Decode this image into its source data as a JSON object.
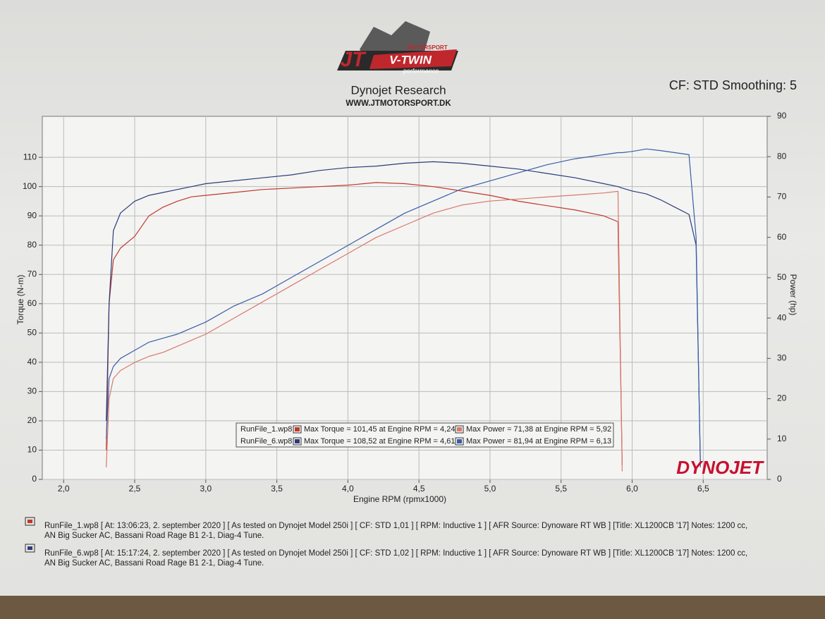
{
  "chart_data": {
    "type": "line",
    "title": "Dynojet Research",
    "subtitle": "WWW.JTMOTORSPORT.DK",
    "annotation": "CF: STD Smoothing: 5",
    "logo_texts": [
      "MOTORSPORT",
      "JT",
      "V-TWIN",
      "performance"
    ],
    "brand": "DYNOJET",
    "x_label": "Engine RPM (rpmx1000)",
    "y_label": "Torque (N-m)",
    "y2_label": "Power (hp)",
    "x": [
      2.3,
      2.32,
      2.35,
      2.4,
      2.5,
      2.6,
      2.7,
      2.8,
      2.9,
      3.0,
      3.2,
      3.4,
      3.6,
      3.8,
      4.0,
      4.2,
      4.4,
      4.6,
      4.8,
      5.0,
      5.2,
      5.4,
      5.6,
      5.8,
      5.9,
      5.93,
      6.0,
      6.1,
      6.2,
      6.3,
      6.4,
      6.45,
      6.48
    ],
    "series": [
      {
        "name": "Max Torque = 101,45 at Engine RPM = 4,24",
        "color": "#c0392b",
        "values": [
          10,
          60,
          75,
          79,
          83,
          90,
          93,
          95,
          96.5,
          97,
          98,
          99,
          99.5,
          100,
          100.5,
          101.4,
          101,
          100,
          98.5,
          97,
          95,
          93.5,
          92,
          90,
          88,
          5,
          null,
          null,
          null,
          null,
          null,
          null,
          null
        ]
      },
      {
        "name": "Max Power = 71,38 at Engine RPM = 5,92",
        "color": "#d9786c",
        "axis": "y2",
        "values": [
          3,
          20,
          25,
          27,
          29,
          30.5,
          31.5,
          33,
          34.5,
          36,
          40,
          44,
          48,
          52,
          56,
          60,
          63,
          66,
          68,
          69,
          69.5,
          70,
          70.5,
          71,
          71.4,
          2,
          null,
          null,
          null,
          null,
          null,
          null,
          null
        ]
      },
      {
        "name": "Max Torque = 108,52 at Engine RPM = 4,61",
        "color": "#2b3c78",
        "values": [
          20,
          60,
          85,
          91,
          95,
          97,
          98,
          99,
          100,
          101,
          102,
          103,
          104,
          105.5,
          106.5,
          107,
          108,
          108.5,
          108,
          107,
          106,
          104.5,
          103,
          101,
          100,
          99.5,
          98.5,
          97.5,
          95.5,
          93,
          90.5,
          80,
          5
        ]
      },
      {
        "name": "Max Power = 81,94 at Engine RPM = 6,13",
        "color": "#3a5da6",
        "axis": "y2",
        "values": [
          10,
          25,
          28,
          30,
          32,
          34,
          35,
          36,
          37.5,
          39,
          43,
          46,
          50,
          54,
          58,
          62,
          66,
          69,
          72,
          74,
          76,
          78,
          79.5,
          80.5,
          81,
          81,
          81.3,
          81.9,
          81.5,
          81,
          80.5,
          60,
          3
        ]
      }
    ],
    "legend_files": [
      "RunFile_1.wp8",
      "RunFile_6.wp8"
    ],
    "xlim": [
      1.85,
      6.95
    ],
    "xticks": [
      {
        "value": 2,
        "label": "2,0"
      },
      {
        "value": 2.5,
        "label": "2,5"
      },
      {
        "value": 3,
        "label": "3,0"
      },
      {
        "value": 3.5,
        "label": "3,5"
      },
      {
        "value": 4,
        "label": "4,0"
      },
      {
        "value": 4.5,
        "label": "4,5"
      },
      {
        "value": 5,
        "label": "5,0"
      },
      {
        "value": 5.5,
        "label": "5,5"
      },
      {
        "value": 6,
        "label": "6,0"
      },
      {
        "value": 6.5,
        "label": "6,5"
      }
    ],
    "ylim": [
      0,
      124
    ],
    "yticks": [
      0,
      10,
      20,
      30,
      40,
      50,
      60,
      70,
      80,
      90,
      100,
      110
    ],
    "y2lim": [
      0,
      90
    ],
    "y2ticks": [
      0,
      10,
      20,
      30,
      40,
      50,
      60,
      70,
      80,
      90
    ],
    "grid": true,
    "notes": [
      "RunFile_1.wp8 [ At: 13:06:23, 2. september 2020 ] [ As tested on Dynojet Model 250i ] [ CF: STD 1,01 ] [ RPM: Inductive 1 ] [ AFR Source: Dynoware RT WB ] [Title: XL1200CB '17]  Notes: 1200 cc, AN Big Sucker AC, Bassani Road Rage B1 2-1, Diag-4 Tune.",
      "RunFile_6.wp8 [ At: 15:17:24, 2. september 2020 ] [ As tested on Dynojet Model 250i ] [ CF: STD 1,02 ] [ RPM: Inductive 1 ] [ AFR Source: Dynoware RT WB ] [Title: XL1200CB '17]  Notes: 1200 cc, AN Big Sucker AC, Bassani Road Rage B1 2-1, Diag-4 Tune."
    ]
  }
}
